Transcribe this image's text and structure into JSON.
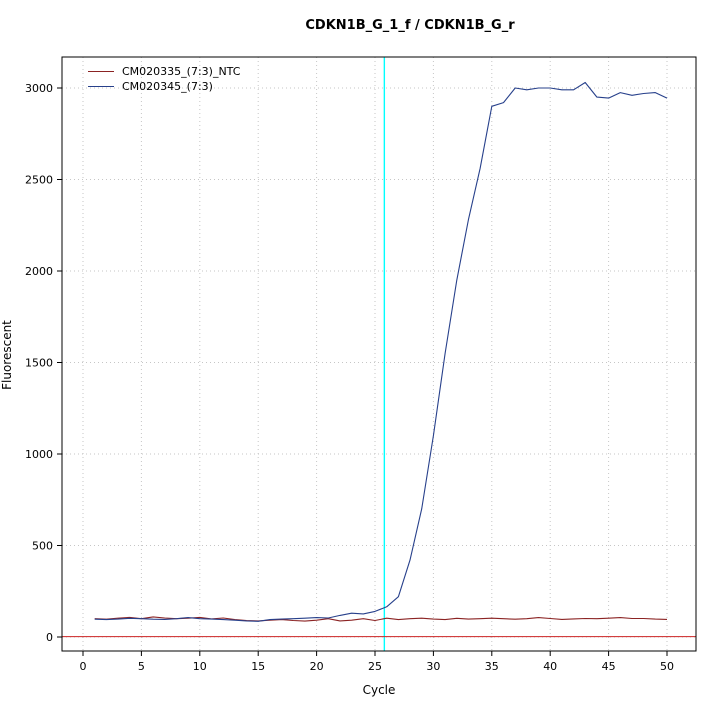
{
  "chart_data": {
    "type": "line",
    "title": "CDKN1B_G_1_f / CDKN1B_G_r",
    "xlabel": "Cycle",
    "ylabel": "Fluorescent",
    "xlim": [
      0,
      50
    ],
    "ylim": [
      0,
      3100
    ],
    "xticks": [
      0,
      5,
      10,
      15,
      20,
      25,
      30,
      35,
      40,
      45,
      50
    ],
    "yticks": [
      0,
      500,
      1000,
      1500,
      2000,
      2500,
      3000
    ],
    "grid": "dotted",
    "grid_color": "#c6c6c6",
    "legend_position": "top-left",
    "ct_line": {
      "x": 25.8,
      "color": "#00ffff"
    },
    "baseline": {
      "y": 2,
      "color": "#cc2222"
    },
    "x": [
      1,
      2,
      3,
      4,
      5,
      6,
      7,
      8,
      9,
      10,
      11,
      12,
      13,
      14,
      15,
      16,
      17,
      18,
      19,
      20,
      21,
      22,
      23,
      24,
      25,
      26,
      27,
      28,
      29,
      30,
      31,
      32,
      33,
      34,
      35,
      36,
      37,
      38,
      39,
      40,
      41,
      42,
      43,
      44,
      45,
      46,
      47,
      48,
      49,
      50
    ],
    "series": [
      {
        "name": "CM020335_(7:3)_NTC",
        "color": "#8b2323",
        "values": [
          100,
          97,
          103,
          107,
          100,
          110,
          104,
          100,
          103,
          107,
          99,
          104,
          95,
          90,
          88,
          92,
          95,
          90,
          87,
          92,
          100,
          88,
          92,
          100,
          90,
          103,
          95,
          100,
          103,
          98,
          95,
          102,
          98,
          100,
          103,
          100,
          97,
          100,
          106,
          101,
          96,
          99,
          101,
          100,
          103,
          106,
          101,
          101,
          98,
          96
        ]
      },
      {
        "name": "CM020345_(7:3)",
        "color": "#27408b",
        "values": [
          97,
          95,
          98,
          102,
          100,
          97,
          96,
          100,
          106,
          100,
          98,
          95,
          92,
          88,
          86,
          95,
          98,
          100,
          103,
          106,
          104,
          118,
          130,
          126,
          140,
          165,
          220,
          420,
          700,
          1100,
          1550,
          1950,
          2280,
          2560,
          2900,
          2920,
          3000,
          2990,
          3000,
          3000,
          2990,
          2990,
          3030,
          2950,
          2945,
          2975,
          2960,
          2970,
          2975,
          2945
        ]
      }
    ]
  }
}
